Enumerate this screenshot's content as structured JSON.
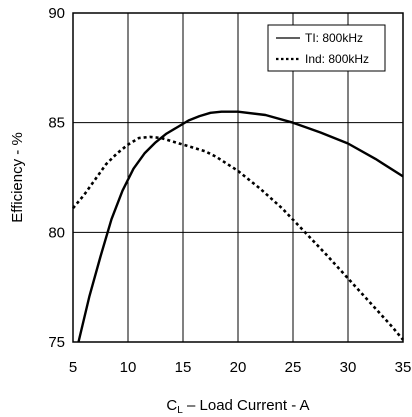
{
  "chart_data": {
    "type": "line",
    "xlabel_prefix": "C",
    "xlabel_sub": "L",
    "xlabel_rest": " – Load Current - A",
    "ylabel": "Efficiency - %",
    "xlim": [
      5,
      35
    ],
    "ylim": [
      75,
      90
    ],
    "xticks": [
      5,
      10,
      15,
      20,
      25,
      30,
      35
    ],
    "yticks": [
      75,
      80,
      85,
      90
    ],
    "grid": true,
    "legend_position": "top-right",
    "series": [
      {
        "name": "TI:  800kHz",
        "style": "solid",
        "x": [
          5.5,
          6.5,
          7.5,
          8.5,
          9.5,
          10.5,
          11.5,
          12.5,
          13.5,
          14.5,
          15.5,
          16.5,
          17.5,
          18.5,
          20,
          22.5,
          25,
          27.5,
          30,
          32.5,
          35
        ],
        "y": [
          75.0,
          77.1,
          78.9,
          80.6,
          81.9,
          82.9,
          83.6,
          84.1,
          84.5,
          84.8,
          85.1,
          85.3,
          85.45,
          85.5,
          85.5,
          85.35,
          85.0,
          84.55,
          84.05,
          83.35,
          82.55
        ]
      },
      {
        "name": "Ind: 800kHz",
        "style": "dotted",
        "x": [
          5,
          6,
          7,
          8,
          9,
          10,
          11,
          12,
          13,
          14,
          15,
          16,
          17,
          18,
          20,
          22,
          24,
          26,
          28,
          30,
          32,
          34,
          35
        ],
        "y": [
          81.1,
          81.7,
          82.4,
          83.1,
          83.6,
          84.0,
          84.3,
          84.35,
          84.3,
          84.15,
          84.0,
          83.85,
          83.7,
          83.45,
          82.8,
          82.0,
          81.1,
          80.05,
          79.0,
          77.9,
          76.8,
          75.7,
          75.1
        ]
      }
    ]
  }
}
